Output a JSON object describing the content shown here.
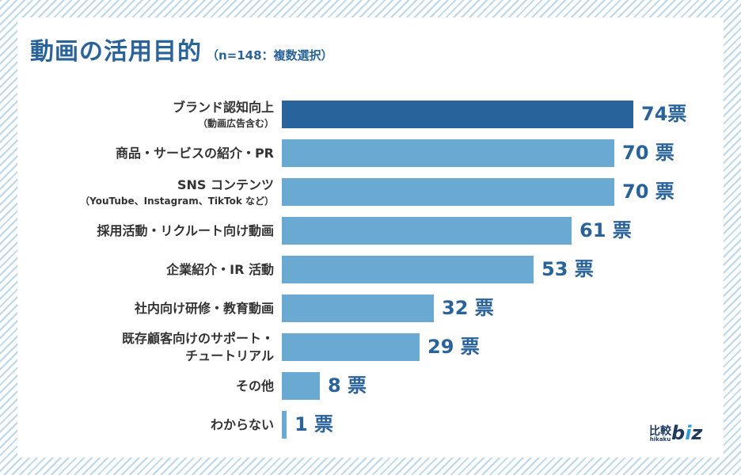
{
  "chart_data": {
    "type": "bar",
    "orientation": "horizontal",
    "title": "動画の活用目的",
    "subtitle": "（n=148：複数選択）",
    "value_suffix": "票",
    "colors": {
      "highlight": "#28639c",
      "bar": "#6aa9d1",
      "value_text": "#2a639a"
    },
    "categories": [
      {
        "label": "ブランド認知向上",
        "sub": "（動画広告含む）",
        "value": 74,
        "value_label": "74票",
        "highlight": true
      },
      {
        "label": "商品・サービスの紹介・PR",
        "value": 70,
        "value_label": "70 票"
      },
      {
        "label": "SNS コンテンツ",
        "sub": "（YouTube、Instagram、TikTok など）",
        "value": 70,
        "value_label": "70 票"
      },
      {
        "label": "採用活動・リクルート向け動画",
        "value": 61,
        "value_label": "61 票"
      },
      {
        "label": "企業紹介・IR 活動",
        "value": 53,
        "value_label": "53 票"
      },
      {
        "label": "社内向け研修・教育動画",
        "value": 32,
        "value_label": "32 票"
      },
      {
        "label": "既存顧客向けのサポート・",
        "label2": "チュートリアル",
        "value": 29,
        "value_label": "29 票"
      },
      {
        "label": "その他",
        "value": 8,
        "value_label": "8 票"
      },
      {
        "label": "わからない",
        "value": 1,
        "value_label": "1 票"
      }
    ],
    "xlim": [
      0,
      74
    ]
  },
  "logo": {
    "kanji": "比較",
    "roma": "hikaku",
    "brand_pre": "b",
    "brand_dot": "i",
    "brand_post": "z"
  }
}
